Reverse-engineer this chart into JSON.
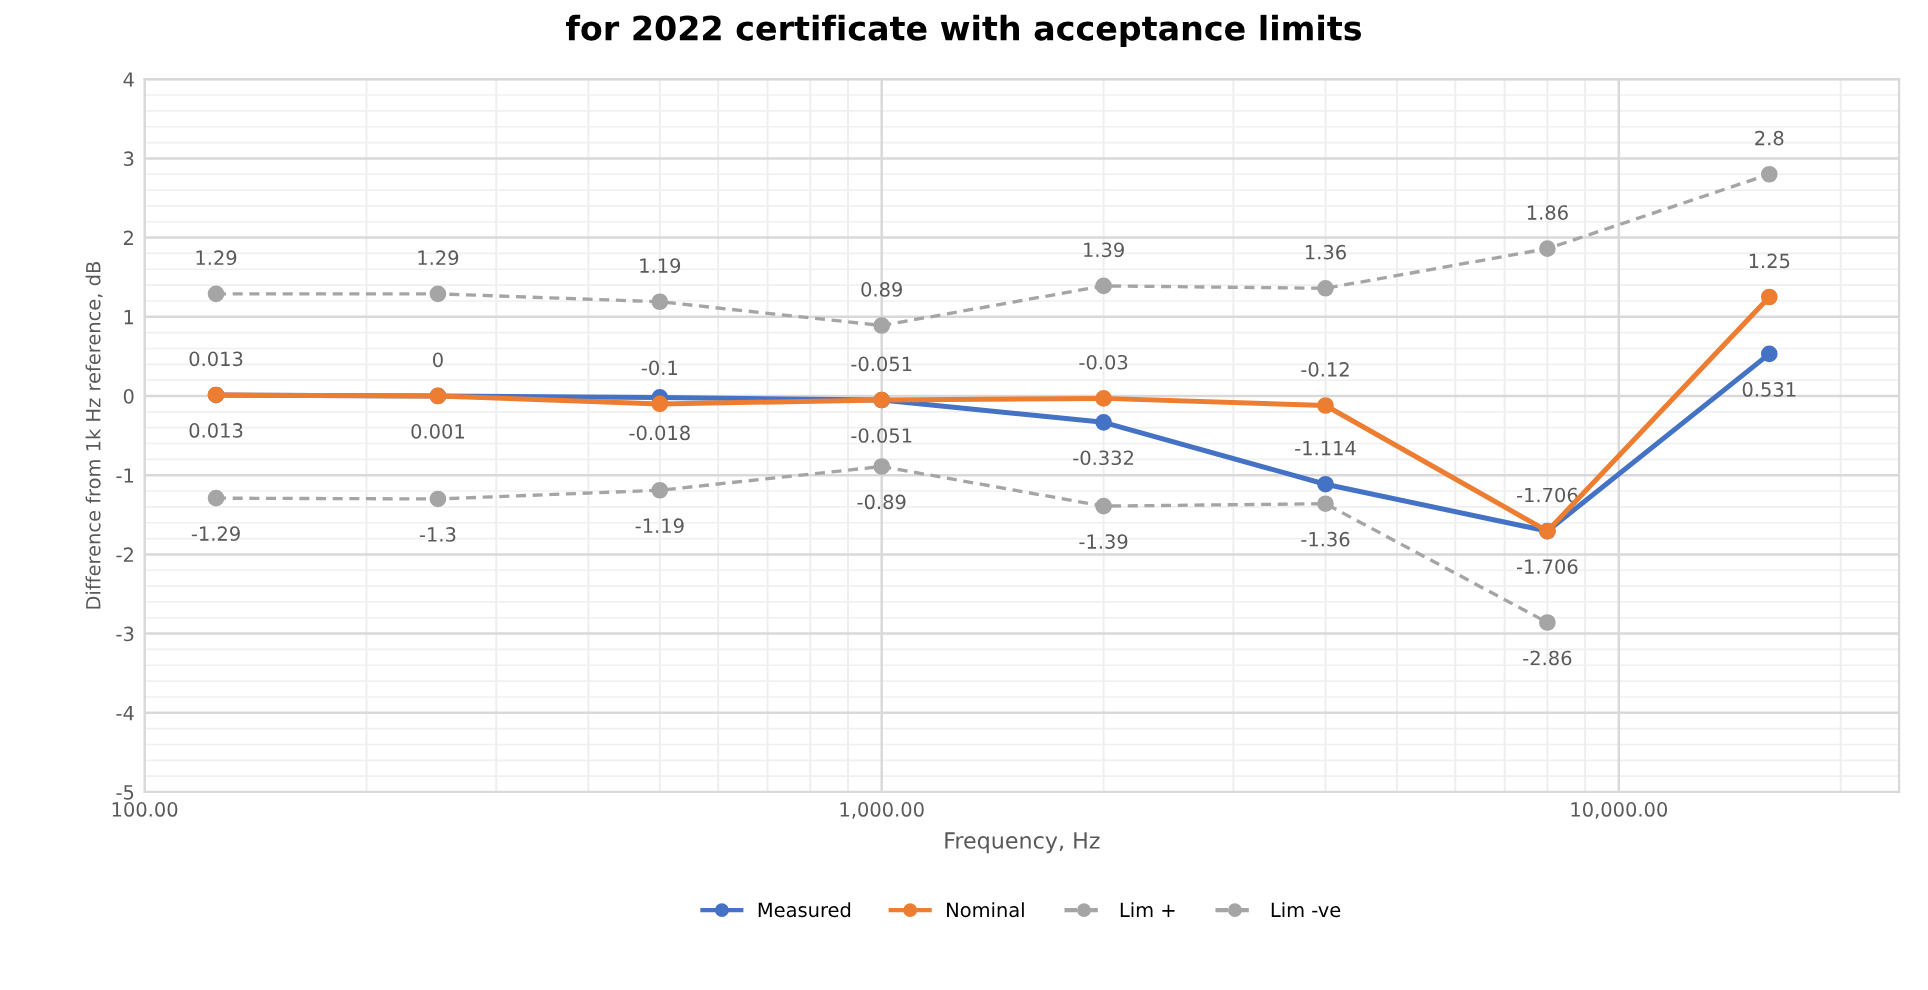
{
  "chart_data": {
    "type": "line",
    "title": "for 2022 certificate with acceptance limits",
    "xlabel": "Frequency, Hz",
    "ylabel": "Difference from 1k Hz reference, dB",
    "x": [
      125,
      250,
      500,
      1000,
      2000,
      4000,
      8000,
      16000
    ],
    "series": [
      {
        "name": "Measured",
        "color": "#4472c4",
        "line_style": "solid",
        "values": [
          0.013,
          0.001,
          -0.018,
          -0.051,
          -0.332,
          -1.114,
          -1.706,
          0.531
        ]
      },
      {
        "name": "Nominal",
        "color": "#ed7d31",
        "line_style": "solid",
        "values": [
          0.013,
          0,
          -0.1,
          -0.051,
          -0.03,
          -0.12,
          -1.706,
          1.25
        ]
      },
      {
        "name": "Lim +",
        "color": "#a5a5a5",
        "line_style": "dashed",
        "values": [
          1.29,
          1.29,
          1.19,
          0.89,
          1.39,
          1.36,
          1.86,
          2.8
        ]
      },
      {
        "name": "Lim -ve",
        "color": "#a5a5a5",
        "line_style": "dashed",
        "values": [
          -1.29,
          -1.3,
          -1.19,
          -0.89,
          -1.39,
          -1.36,
          -2.86,
          null
        ]
      }
    ],
    "log": "x",
    "xlim": [
      100,
      24000
    ],
    "xticks": [
      {
        "value": 100,
        "label": "100.00"
      },
      {
        "value": 1000,
        "label": "1,000.00"
      },
      {
        "value": 10000,
        "label": "10,000.00"
      }
    ],
    "ylim": [
      -5,
      4
    ],
    "yticks": [
      -5,
      -4,
      -3,
      -2,
      -1,
      0,
      1,
      2,
      3,
      4
    ],
    "grid": true,
    "legend": "bottom",
    "marker": "circle",
    "data_labels": true
  }
}
